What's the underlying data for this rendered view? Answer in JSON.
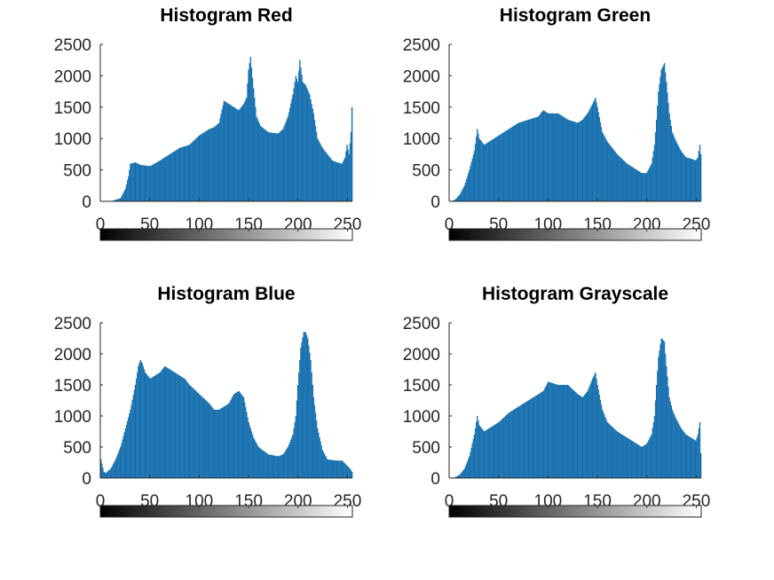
{
  "figure": {
    "colorbar_gradient": [
      "#000000",
      "#ffffff"
    ],
    "bar_color": "#1f77b4"
  },
  "chart_data": [
    {
      "type": "bar",
      "title": "Histogram Red",
      "xlim": [
        0,
        255
      ],
      "ylim": [
        0,
        2500
      ],
      "xticks": [
        0,
        50,
        100,
        150,
        200,
        250
      ],
      "yticks": [
        0,
        500,
        1000,
        1500,
        2000,
        2500
      ],
      "xtick_labels": [
        "0",
        "50",
        "100",
        "150",
        "200",
        "250"
      ],
      "ytick_labels": [
        "0",
        "500",
        "1000",
        "1500",
        "2000",
        "2500"
      ],
      "colorbar": true,
      "bins_x": [
        0,
        10,
        20,
        25,
        28,
        30,
        35,
        40,
        50,
        60,
        70,
        80,
        90,
        100,
        110,
        115,
        120,
        125,
        130,
        135,
        140,
        145,
        148,
        150,
        152,
        155,
        158,
        162,
        170,
        180,
        185,
        190,
        195,
        198,
        200,
        202,
        205,
        208,
        212,
        216,
        220,
        225,
        230,
        235,
        240,
        245,
        248,
        250,
        252,
        254,
        255
      ],
      "bins_y": [
        0,
        0,
        50,
        200,
        400,
        600,
        620,
        580,
        560,
        650,
        750,
        850,
        900,
        1050,
        1150,
        1180,
        1250,
        1600,
        1550,
        1500,
        1450,
        1550,
        1650,
        2100,
        2300,
        1800,
        1350,
        1200,
        1100,
        1080,
        1150,
        1350,
        1700,
        2000,
        1900,
        2250,
        1900,
        1850,
        1700,
        1400,
        1000,
        850,
        750,
        650,
        620,
        600,
        700,
        900,
        750,
        1100,
        1500
      ]
    },
    {
      "type": "bar",
      "title": "Histogram Green",
      "xlim": [
        0,
        255
      ],
      "ylim": [
        0,
        2500
      ],
      "xticks": [
        0,
        50,
        100,
        150,
        200,
        250
      ],
      "yticks": [
        0,
        500,
        1000,
        1500,
        2000,
        2500
      ],
      "xtick_labels": [
        "0",
        "50",
        "100",
        "150",
        "200",
        "250"
      ],
      "ytick_labels": [
        "0",
        "500",
        "1000",
        "1500",
        "2000",
        "2500"
      ],
      "colorbar": true,
      "bins_x": [
        0,
        5,
        10,
        15,
        20,
        25,
        28,
        30,
        35,
        40,
        50,
        60,
        70,
        80,
        90,
        95,
        100,
        110,
        120,
        130,
        135,
        140,
        145,
        148,
        150,
        155,
        160,
        170,
        180,
        190,
        195,
        200,
        205,
        208,
        210,
        212,
        215,
        218,
        220,
        223,
        226,
        230,
        235,
        240,
        245,
        250,
        252,
        254,
        255
      ],
      "bins_y": [
        0,
        20,
        100,
        250,
        500,
        800,
        1150,
        1000,
        900,
        950,
        1050,
        1150,
        1250,
        1300,
        1350,
        1450,
        1400,
        1400,
        1300,
        1250,
        1300,
        1400,
        1550,
        1650,
        1500,
        1100,
        950,
        750,
        600,
        500,
        450,
        450,
        600,
        900,
        1300,
        1750,
        2100,
        2200,
        1900,
        1400,
        1100,
        950,
        800,
        700,
        680,
        650,
        700,
        900,
        750
      ]
    },
    {
      "type": "bar",
      "title": "Histogram Blue",
      "xlim": [
        0,
        255
      ],
      "ylim": [
        0,
        2500
      ],
      "xticks": [
        0,
        50,
        100,
        150,
        200,
        250
      ],
      "yticks": [
        0,
        500,
        1000,
        1500,
        2000,
        2500
      ],
      "xtick_labels": [
        "0",
        "50",
        "100",
        "150",
        "200",
        "250"
      ],
      "ytick_labels": [
        "0",
        "500",
        "1000",
        "1500",
        "2000",
        "2500"
      ],
      "colorbar": true,
      "bins_x": [
        0,
        3,
        5,
        10,
        15,
        20,
        25,
        30,
        35,
        38,
        40,
        42,
        45,
        50,
        55,
        60,
        65,
        70,
        75,
        80,
        85,
        90,
        100,
        110,
        115,
        120,
        125,
        130,
        135,
        140,
        145,
        150,
        155,
        160,
        170,
        180,
        185,
        190,
        195,
        198,
        200,
        203,
        206,
        208,
        210,
        213,
        216,
        220,
        225,
        230,
        240,
        245,
        250,
        253,
        255
      ],
      "bins_y": [
        300,
        100,
        80,
        150,
        300,
        500,
        800,
        1100,
        1500,
        1800,
        1900,
        1850,
        1700,
        1600,
        1650,
        1700,
        1800,
        1750,
        1700,
        1650,
        1600,
        1500,
        1350,
        1200,
        1100,
        1100,
        1150,
        1200,
        1350,
        1400,
        1300,
        900,
        650,
        500,
        380,
        350,
        380,
        500,
        700,
        1000,
        1500,
        2100,
        2350,
        2350,
        2250,
        1900,
        1300,
        800,
        450,
        300,
        280,
        280,
        200,
        150,
        100
      ]
    },
    {
      "type": "bar",
      "title": "Histogram Grayscale",
      "xlim": [
        0,
        255
      ],
      "ylim": [
        0,
        2500
      ],
      "xticks": [
        0,
        50,
        100,
        150,
        200,
        250
      ],
      "yticks": [
        0,
        500,
        1000,
        1500,
        2000,
        2500
      ],
      "xtick_labels": [
        "0",
        "50",
        "100",
        "150",
        "200",
        "250"
      ],
      "ytick_labels": [
        "0",
        "500",
        "1000",
        "1500",
        "2000",
        "2500"
      ],
      "colorbar": true,
      "bins_x": [
        0,
        5,
        10,
        15,
        20,
        25,
        28,
        30,
        35,
        40,
        50,
        60,
        70,
        80,
        90,
        95,
        100,
        110,
        120,
        130,
        135,
        140,
        145,
        148,
        150,
        155,
        160,
        170,
        180,
        190,
        195,
        200,
        205,
        208,
        210,
        212,
        215,
        218,
        220,
        223,
        226,
        230,
        235,
        240,
        245,
        250,
        252,
        254,
        255
      ],
      "bins_y": [
        0,
        10,
        50,
        150,
        350,
        700,
        1000,
        850,
        750,
        800,
        900,
        1050,
        1150,
        1250,
        1350,
        1400,
        1550,
        1500,
        1500,
        1350,
        1300,
        1400,
        1600,
        1700,
        1500,
        1100,
        900,
        750,
        650,
        550,
        500,
        550,
        700,
        1000,
        1500,
        1950,
        2250,
        2200,
        1800,
        1300,
        1100,
        950,
        800,
        700,
        650,
        600,
        700,
        900,
        400
      ]
    }
  ]
}
